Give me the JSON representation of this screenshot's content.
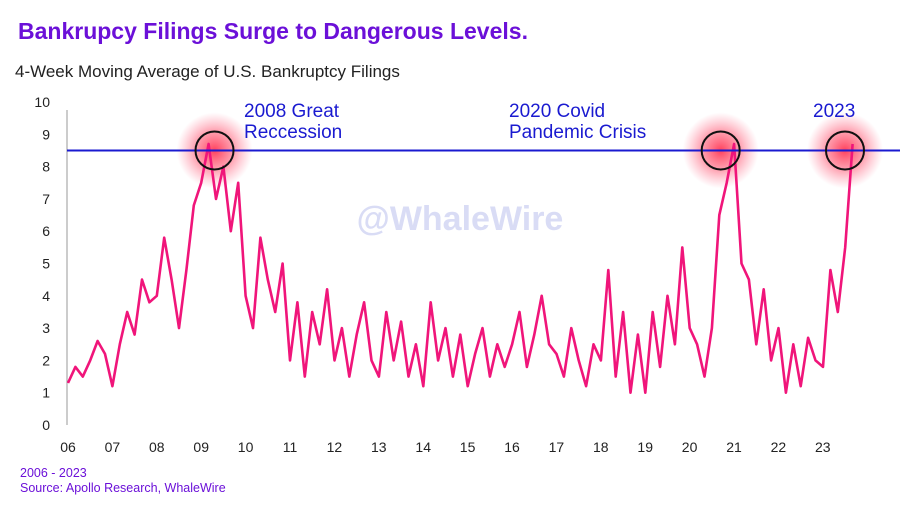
{
  "title": "Bankrupcy Filings Surge to Dangerous Levels.",
  "subtitle": "4-Week Moving Average of U.S. Bankruptcy Filings",
  "watermark": "@WhaleWire",
  "footer": {
    "period": "2006 - 2023",
    "source": "Source: Apollo Research, WhaleWire"
  },
  "colors": {
    "title": "#6b10d8",
    "series": "#f0157a",
    "threshold": "#1a1ad0",
    "annotation": "#1a1ad0"
  },
  "chart_data": {
    "type": "line",
    "title": "4-Week Moving Average of U.S. Bankruptcy Filings",
    "xlabel": "",
    "ylabel": "",
    "ylim": [
      0,
      10
    ],
    "xlim": [
      2006,
      2024
    ],
    "y_ticks": [
      "0",
      "1",
      "2",
      "3",
      "4",
      "5",
      "6",
      "7",
      "8",
      "9",
      "10"
    ],
    "x_ticks": [
      "06",
      "07",
      "08",
      "09",
      "10",
      "11",
      "12",
      "13",
      "14",
      "15",
      "16",
      "17",
      "18",
      "19",
      "20",
      "21",
      "22",
      "23"
    ],
    "threshold": 8.5,
    "series": [
      {
        "name": "4-week moving average",
        "start": 2006,
        "step_years": 0.1667,
        "values": [
          1.3,
          1.8,
          1.5,
          2.0,
          2.6,
          2.2,
          1.2,
          2.5,
          3.5,
          2.8,
          4.5,
          3.8,
          4.0,
          5.8,
          4.5,
          3.0,
          4.8,
          6.8,
          7.5,
          8.7,
          7.0,
          8.0,
          6.0,
          7.5,
          4.0,
          3.0,
          5.8,
          4.5,
          3.5,
          5.0,
          2.0,
          3.8,
          1.5,
          3.5,
          2.5,
          4.2,
          2.0,
          3.0,
          1.5,
          2.8,
          3.8,
          2.0,
          1.5,
          3.5,
          2.0,
          3.2,
          1.5,
          2.5,
          1.2,
          3.8,
          2.0,
          3.0,
          1.5,
          2.8,
          1.2,
          2.2,
          3.0,
          1.5,
          2.5,
          1.8,
          2.5,
          3.5,
          1.8,
          2.8,
          4.0,
          2.5,
          2.2,
          1.5,
          3.0,
          2.0,
          1.2,
          2.5,
          2.0,
          4.8,
          1.5,
          3.5,
          1.0,
          2.8,
          1.0,
          3.5,
          1.8,
          4.0,
          2.5,
          5.5,
          3.0,
          2.5,
          1.5,
          3.0,
          6.5,
          7.5,
          8.7,
          5.0,
          4.5,
          2.5,
          4.2,
          2.0,
          3.0,
          1.0,
          2.5,
          1.2,
          2.7,
          2.0,
          1.8,
          4.8,
          3.5,
          5.5,
          8.7
        ]
      }
    ],
    "annotations": [
      {
        "lines": [
          "2008 Great",
          "Reccession"
        ],
        "x": 2009.3,
        "y": 8.5
      },
      {
        "lines": [
          "2020 Covid",
          "Pandemic Crisis"
        ],
        "x": 2020.7,
        "y": 8.5
      },
      {
        "lines": [
          "2023"
        ],
        "x": 2023.5,
        "y": 8.5
      }
    ]
  }
}
